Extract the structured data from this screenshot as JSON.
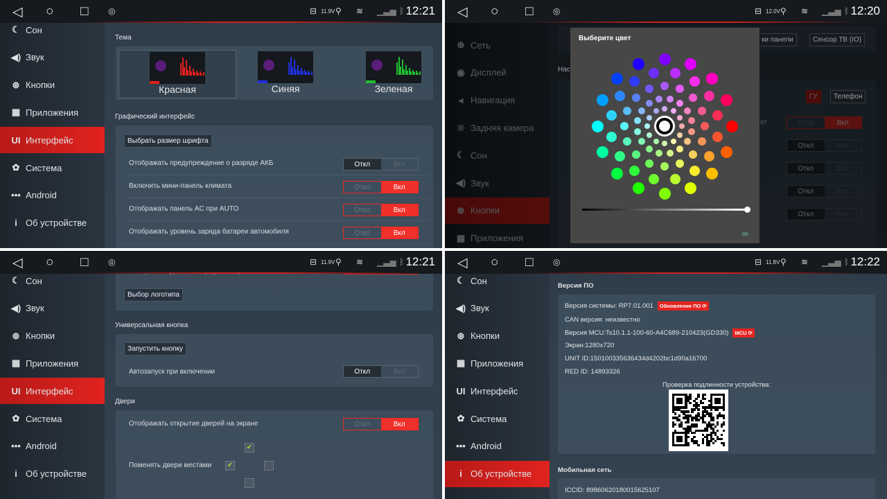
{
  "status_bars": [
    {
      "voltage": "11.9V",
      "time": "12:21"
    },
    {
      "voltage": "12.0V",
      "time": "12:20"
    },
    {
      "voltage": "11.9V",
      "time": "12:21"
    },
    {
      "voltage": "11.8V",
      "time": "12:22"
    }
  ],
  "icons": {
    "back": "back-triangle-icon",
    "home": "home-circle-icon",
    "recent": "recent-square-icon",
    "battery": "battery-icon",
    "location": "location-icon",
    "wifi": "wifi-icon",
    "signal": "signal-icon",
    "bluetooth": "bluetooth-icon"
  },
  "panel1": {
    "sidebar": [
      {
        "label": "Сон",
        "icon": "moon"
      },
      {
        "label": "Звук",
        "icon": "speaker"
      },
      {
        "label": "Кнопки",
        "icon": "steering-wheel"
      },
      {
        "label": "Приложения",
        "icon": "apps"
      },
      {
        "label": "Интерфейс",
        "icon": "ui",
        "active": true
      },
      {
        "label": "Система",
        "icon": "gear"
      },
      {
        "label": "Android",
        "icon": "dots"
      },
      {
        "label": "Об устройстве",
        "icon": "info"
      }
    ],
    "theme_label": "Тема",
    "themes": [
      {
        "label": "Красная",
        "color": "#e0201c",
        "selected": true
      },
      {
        "label": "Синяя",
        "color": "#2030e0"
      },
      {
        "label": "Зеленая",
        "color": "#20c030"
      }
    ],
    "gui_label": "Графический интерфейс",
    "font_button": "Выбрать размер шрифта",
    "rows": [
      {
        "label": "Отображать предупреждение о разряде АКБ",
        "on": false
      },
      {
        "label": "Включить мини-панель климата",
        "on": true
      },
      {
        "label": "Отображать панель AC при AUTO",
        "on": true
      },
      {
        "label": "Отображать уровень заряда батареи автомобиля",
        "on": true
      }
    ]
  },
  "toggle": {
    "off": "Откл",
    "on": "Вкл"
  },
  "panel2": {
    "sidebar": [
      {
        "label": "Сеть",
        "icon": "globe"
      },
      {
        "label": "Дисплей",
        "icon": "display"
      },
      {
        "label": "Навигация",
        "icon": "navigation"
      },
      {
        "label": "Задняя камера",
        "icon": "camera"
      },
      {
        "label": "Сон",
        "icon": "moon"
      },
      {
        "label": "Звук",
        "icon": "speaker"
      },
      {
        "label": "Кнопки",
        "icon": "steering-wheel",
        "active": true
      },
      {
        "label": "Приложения",
        "icon": "apps"
      }
    ],
    "bg_buttons": [
      "ки панели",
      "Сенсор ТВ (IO)"
    ],
    "bg_label": "Нас",
    "bg_label2": "ет",
    "gu_button": "ГУ",
    "phone_button": "Телефон",
    "bg_toggles": [
      true,
      false,
      false,
      false,
      false
    ],
    "dialog": {
      "title": "Выберите цвет",
      "ok": "ОК",
      "brightness": 1.0,
      "selected_color": "#ffffff"
    }
  },
  "panel3": {
    "sidebar": [
      {
        "label": "Сон",
        "icon": "moon"
      },
      {
        "label": "Звук",
        "icon": "speaker"
      },
      {
        "label": "Кнопки",
        "icon": "steering-wheel"
      },
      {
        "label": "Приложения",
        "icon": "apps"
      },
      {
        "label": "Интерфейс",
        "icon": "ui",
        "active": true
      },
      {
        "label": "Система",
        "icon": "gear"
      },
      {
        "label": "Android",
        "icon": "dots"
      },
      {
        "label": "Об устройстве",
        "icon": "info"
      }
    ],
    "top_row": "Отображать уровень заряда телефона",
    "logo_button": "Выбор логотипа",
    "universal_label": "Универсальная кнопка",
    "launch_button": "Запустить кнопку",
    "autostart": {
      "label": "Автозапуск при включении",
      "on": false
    },
    "doors_label": "Двери",
    "doors_row": {
      "label": "Отображать открытие дверей на экране",
      "on": true
    },
    "swap_label": "Поменять двери местами",
    "checkboxes": {
      "top": true,
      "left": true,
      "right": false,
      "bottom": false
    }
  },
  "panel4": {
    "sidebar": [
      {
        "label": "Сон",
        "icon": "moon"
      },
      {
        "label": "Звук",
        "icon": "speaker"
      },
      {
        "label": "Кнопки",
        "icon": "steering-wheel"
      },
      {
        "label": "Приложения",
        "icon": "apps"
      },
      {
        "label": "Интерфейс",
        "icon": "ui"
      },
      {
        "label": "Система",
        "icon": "gear"
      },
      {
        "label": "Android",
        "icon": "dots"
      },
      {
        "label": "Об устройстве",
        "icon": "info",
        "active": true
      }
    ],
    "sw_label": "Версия ПО",
    "system_version": "Версия системы: RP7.01.001",
    "update_button": "Обновление ПО ⟳",
    "can_version": "CAN версия: неизвестно",
    "mcu_version": "Версия MCU:Ts10.1.1-100-60-A4C689-210423(GD330)",
    "mcu_button": "MCU ⟳",
    "screen": "Экран:1280x720",
    "unit_id": "UNIT ID:150100335636434d4202bc1d90a16700",
    "red_id": "RED ID: 14893326",
    "auth_label": "Проверка подлинности устройства:",
    "mobile_label": "Мобильная сеть",
    "iccid": "ICCID:  89860620180015625107"
  }
}
